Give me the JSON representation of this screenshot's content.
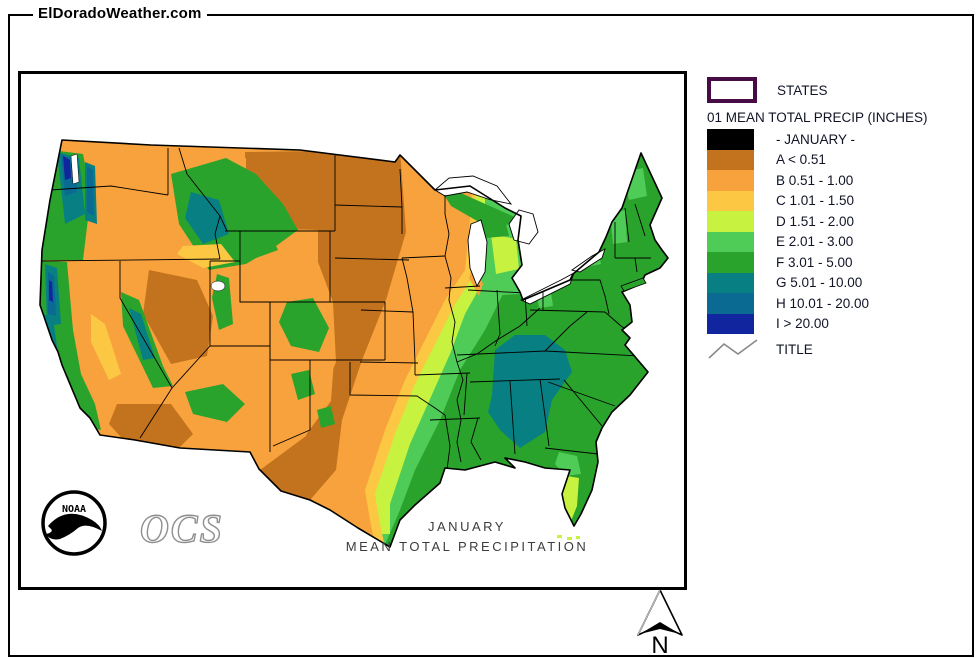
{
  "page": {
    "brand": "ElDoradoWeather.com"
  },
  "legend": {
    "states_label": "STATES",
    "states_border_color": "#470B46",
    "header": "01 MEAN TOTAL PRECIP (INCHES)",
    "entries": [
      {
        "key": "JAN",
        "label": "- JANUARY -",
        "color": "#000000"
      },
      {
        "key": "A",
        "label": "A < 0.51",
        "color": "#C3731E"
      },
      {
        "key": "B",
        "label": "B 0.51 - 1.00",
        "color": "#F7A23C"
      },
      {
        "key": "C",
        "label": "C 1.01 - 1.50",
        "color": "#FCC843"
      },
      {
        "key": "D",
        "label": "D 1.51 - 2.00",
        "color": "#C7F23F"
      },
      {
        "key": "E",
        "label": "E 2.01 - 3.00",
        "color": "#4FCB57"
      },
      {
        "key": "F",
        "label": "F 3.01 - 5.00",
        "color": "#2AA32C"
      },
      {
        "key": "G",
        "label": "G 5.01 - 10.00",
        "color": "#088083"
      },
      {
        "key": "H",
        "label": "H 10.01 - 20.00",
        "color": "#0B6A92"
      },
      {
        "key": "I",
        "label": "I > 20.00",
        "color": "#10259E"
      }
    ],
    "title_label": "TITLE"
  },
  "map": {
    "caption_line1": "JANUARY",
    "caption_line2": "MEAN TOTAL PRECIPITATION",
    "noaa_label": "NOAA",
    "ocs_label": "OCS",
    "north_label": "N",
    "water_color": "#FFFFFF"
  }
}
